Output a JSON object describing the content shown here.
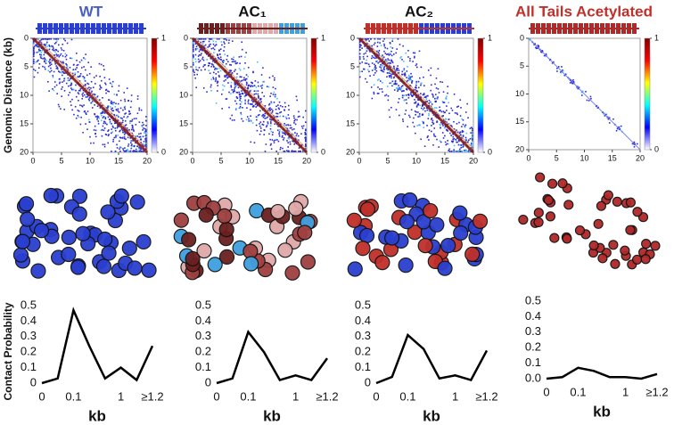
{
  "chart_data": [
    {
      "type": "heatmap",
      "title": "WT",
      "title_color": "#4a5fc1",
      "ylabel": "Genomic Distance (kb)",
      "xlim": [
        0,
        20
      ],
      "ylim": [
        0,
        20
      ],
      "y_inverted": true,
      "xticks": [
        0,
        5,
        10,
        15,
        20
      ],
      "yticks": [
        0,
        5,
        10,
        15,
        20
      ],
      "colorbar_lim": [
        0,
        1
      ],
      "colorbar_ticks": [
        0,
        1
      ],
      "colormap": [
        "#ffffff",
        "#0000ff",
        "#00ffff",
        "#ffff00",
        "#ff0000",
        "#800000"
      ],
      "strip_colors": [
        "#2a3fd0"
      ]
    },
    {
      "type": "heatmap",
      "title": "AC₁",
      "title_color": "#111111",
      "xlim": [
        0,
        20
      ],
      "ylim": [
        0,
        20
      ],
      "y_inverted": true,
      "xticks": [
        0,
        5,
        10,
        15,
        20
      ],
      "yticks": [
        0,
        5,
        10,
        15,
        20
      ],
      "colorbar_lim": [
        0,
        1
      ],
      "colorbar_ticks": [
        0,
        1
      ],
      "colormap": [
        "#ffffff",
        "#0000ff",
        "#00ffff",
        "#ffff00",
        "#ff0000",
        "#800000"
      ],
      "strip_colors": [
        "#6b1f1f",
        "#a04040",
        "#e0a8a8",
        "#3fa0e0"
      ]
    },
    {
      "type": "heatmap",
      "title": "AC₂",
      "title_color": "#111111",
      "xlim": [
        0,
        20
      ],
      "ylim": [
        0,
        20
      ],
      "y_inverted": true,
      "xticks": [
        0,
        5,
        10,
        15,
        20
      ],
      "yticks": [
        0,
        5,
        10,
        15,
        20
      ],
      "colorbar_lim": [
        0,
        1
      ],
      "colorbar_ticks": [
        0,
        1
      ],
      "colormap": [
        "#ffffff",
        "#0000ff",
        "#00ffff",
        "#ffff00",
        "#ff0000",
        "#800000"
      ],
      "strip_colors": [
        "#c0302b",
        "#2a3fd0"
      ]
    },
    {
      "type": "heatmap",
      "title": "All Tails Acetylated",
      "title_color": "#c0302b",
      "xlim": [
        0,
        20
      ],
      "ylim": [
        0,
        20
      ],
      "y_inverted": true,
      "xticks": [
        0,
        5,
        10,
        15,
        20
      ],
      "yticks": [
        0,
        5,
        10,
        15,
        20
      ],
      "colorbar_lim": [
        0,
        1
      ],
      "colorbar_ticks": [
        0,
        1
      ],
      "colormap": [
        "#ffffff",
        "#0000ff",
        "#00ffff",
        "#ffff00",
        "#ff0000",
        "#800000"
      ],
      "strip_colors": [
        "#b02828"
      ]
    },
    {
      "type": "line",
      "ylabel": "Contact Probability",
      "xlabel": "kb",
      "categories": [
        "0",
        null,
        "0.1",
        null,
        null,
        "1",
        null,
        "≥1.2"
      ],
      "values": [
        0,
        0.03,
        0.47,
        0.24,
        0.03,
        0.1,
        0.02,
        0.24
      ],
      "color": "#000000",
      "ylim": [
        0,
        0.5
      ],
      "yticks": [
        0,
        0.1,
        0.2,
        0.3,
        0.4,
        0.5
      ]
    },
    {
      "type": "line",
      "xlabel": "kb",
      "categories": [
        "0",
        null,
        "0.1",
        null,
        null,
        "1",
        null,
        "≥1.2"
      ],
      "values": [
        0,
        0.03,
        0.33,
        0.2,
        0.02,
        0.05,
        0.02,
        0.16
      ],
      "color": "#000000",
      "ylim": [
        0,
        0.5
      ],
      "yticks": [
        0,
        0.1,
        0.2,
        0.3,
        0.4,
        0.5
      ]
    },
    {
      "type": "line",
      "xlabel": "kb",
      "categories": [
        "0",
        null,
        "0.1",
        null,
        null,
        "1",
        null,
        "≥1.2"
      ],
      "values": [
        0,
        0.04,
        0.31,
        0.22,
        0.03,
        0.05,
        0.02,
        0.21
      ],
      "color": "#000000",
      "ylim": [
        0,
        0.5
      ],
      "yticks": [
        0,
        0.1,
        0.2,
        0.3,
        0.4,
        0.5
      ]
    },
    {
      "type": "line",
      "xlabel": "kb",
      "categories": [
        "0",
        null,
        "0.1",
        null,
        null,
        "1",
        null,
        "≥1.2"
      ],
      "values": [
        0,
        0.01,
        0.07,
        0.05,
        0.01,
        0.01,
        0,
        0.03
      ],
      "color": "#000000",
      "ylim": [
        0,
        0.5
      ],
      "yticks": [
        {
          "value": 0,
          "label": "0.0"
        },
        0.1,
        0.2,
        0.3,
        0.4,
        0.5
      ]
    }
  ]
}
